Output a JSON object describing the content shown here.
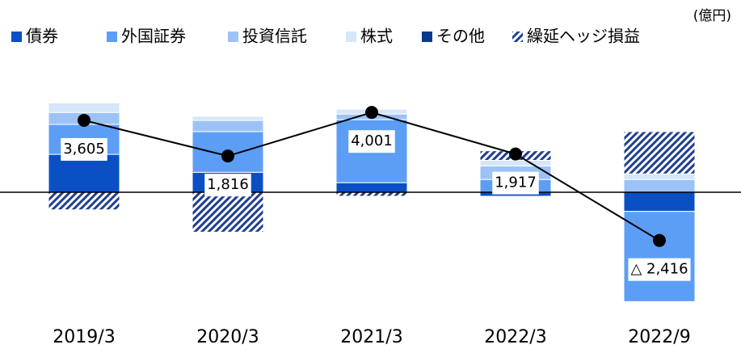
{
  "chart_data": {
    "type": "bar",
    "unit": "(億円)",
    "categories": [
      "2019/3",
      "2020/3",
      "2021/3",
      "2022/3",
      "2022/9"
    ],
    "stacked": true,
    "series": [
      {
        "name": "債券",
        "color": "#0a50c4",
        "values": [
          1900,
          1000,
          480,
          -200,
          -960
        ]
      },
      {
        "name": "外国証券",
        "color": "#5c9ef5",
        "values": [
          1500,
          2040,
          3160,
          640,
          -4520
        ]
      },
      {
        "name": "投資信託",
        "color": "#9cc3f7",
        "values": [
          600,
          560,
          280,
          680,
          640
        ]
      },
      {
        "name": "株式",
        "color": "#d6e6fb",
        "values": [
          480,
          200,
          240,
          280,
          280
        ]
      },
      {
        "name": "その他",
        "color": "#0b3a8c",
        "values": [
          0,
          0,
          0,
          0,
          0
        ]
      },
      {
        "name": "繰延ヘッジ損益",
        "color": "#1f3f8f",
        "pattern": "hatch",
        "values": [
          -880,
          -2000,
          -200,
          480,
          2120
        ]
      }
    ],
    "total": {
      "type": "line",
      "color": "#000000",
      "values": [
        3605,
        1816,
        4001,
        1917,
        -2416
      ],
      "value_labels": [
        "3,605",
        "1,816",
        "4,001",
        "1,917",
        "△ 2,416"
      ]
    }
  }
}
